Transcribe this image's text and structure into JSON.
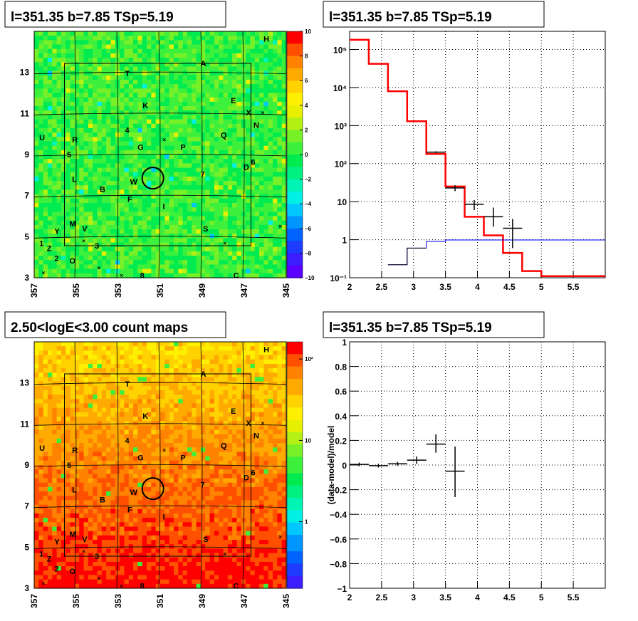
{
  "chart_data": [
    {
      "type": "heatmap",
      "title": "l=351.35 b=7.85 TSp=5.19",
      "x_ticks": [
        "357",
        "355",
        "353",
        "351",
        "349",
        "347",
        "345"
      ],
      "y_ticks": [
        "3",
        "5",
        "7",
        "9",
        "11",
        "13"
      ],
      "xlim": [
        357,
        345
      ],
      "ylim": [
        3,
        15
      ],
      "colorbar": {
        "scale": "linear",
        "range": [
          -10,
          10
        ],
        "ticks": [
          "10",
          "8",
          "6",
          "4",
          "2",
          "0",
          "−2",
          "−4",
          "−6",
          "−8",
          "−10"
        ]
      },
      "source_circle": {
        "l": 351.35,
        "b": 7.85
      }
    },
    {
      "type": "line",
      "title": "l=351.35 b=7.85 TSp=5.19",
      "xlim": [
        2,
        6
      ],
      "ylim": [
        0.1,
        300000
      ],
      "yscale": "log",
      "x_ticks": [
        "2",
        "2.5",
        "3",
        "3.5",
        "4",
        "4.5",
        "5",
        "5.5"
      ],
      "y_ticks": [
        "10⁻¹",
        "1",
        "10",
        "10²",
        "10³",
        "10⁴",
        "10⁵"
      ],
      "grid": true,
      "series": [
        {
          "color": "#ff0000",
          "edges": [
            2,
            2.3,
            2.6,
            2.9,
            3.2,
            3.5,
            3.8,
            4.1,
            4.4,
            4.7,
            5.0,
            6.0
          ],
          "values": [
            180000,
            42000,
            8000,
            1300,
            180,
            25,
            4,
            1.3,
            0.45,
            0.15,
            0.11
          ]
        },
        {
          "color": "#0000ff",
          "edges": [
            2.6,
            2.9,
            3.2,
            3.5,
            3.8,
            4.1,
            4.4,
            4.7,
            5.0,
            6.0
          ],
          "values": [
            0.22,
            0.6,
            0.9,
            0.98,
            0.98,
            0.98,
            0.98,
            0.98,
            0.98
          ]
        },
        {
          "color": "#000000",
          "edges": [
            2.6,
            2.9,
            3.2
          ],
          "values": [
            0.22,
            0.6
          ]
        }
      ],
      "points": [
        {
          "x": 3.35,
          "y": 200,
          "xerr": 0.15,
          "ylo": 190,
          "yhi": 210
        },
        {
          "x": 3.65,
          "y": 23,
          "xerr": 0.15,
          "ylo": 19,
          "yhi": 27
        },
        {
          "x": 3.95,
          "y": 8.5,
          "xerr": 0.15,
          "ylo": 6,
          "yhi": 11
        },
        {
          "x": 4.25,
          "y": 4,
          "xerr": 0.15,
          "ylo": 2.2,
          "yhi": 7
        },
        {
          "x": 4.55,
          "y": 2,
          "xerr": 0.15,
          "ylo": 0.6,
          "yhi": 3.5
        }
      ]
    },
    {
      "type": "heatmap",
      "title": "2.50<logE<3.00 count maps",
      "x_ticks": [
        "357",
        "355",
        "353",
        "351",
        "349",
        "347",
        "345"
      ],
      "y_ticks": [
        "3",
        "5",
        "7",
        "9",
        "11",
        "13"
      ],
      "xlim": [
        357,
        345
      ],
      "ylim": [
        3,
        15
      ],
      "colorbar": {
        "scale": "log",
        "ticks": [
          "10²",
          "10",
          "1"
        ]
      },
      "source_circle": {
        "l": 351.35,
        "b": 7.85
      }
    },
    {
      "type": "scatter",
      "title": "l=351.35 b=7.85 TSp=5.19",
      "ylabel": "(data-model)/model",
      "xlim": [
        2,
        6
      ],
      "ylim": [
        -1,
        1
      ],
      "x_ticks": [
        "2",
        "2.5",
        "3",
        "3.5",
        "4",
        "4.5",
        "5",
        "5.5"
      ],
      "y_ticks": [
        "1",
        "0.8",
        "0.6",
        "0.4",
        "0.2",
        "0",
        "−0.2",
        "−0.4",
        "−0.6",
        "−0.8",
        "−1"
      ],
      "grid": true,
      "points": [
        {
          "x": 2.15,
          "y": 0.005,
          "xerr": 0.15,
          "ylo": -0.01,
          "yhi": 0.02
        },
        {
          "x": 2.45,
          "y": -0.005,
          "xerr": 0.15,
          "ylo": -0.02,
          "yhi": 0.01
        },
        {
          "x": 2.75,
          "y": 0.01,
          "xerr": 0.15,
          "ylo": -0.005,
          "yhi": 0.025
        },
        {
          "x": 3.05,
          "y": 0.04,
          "xerr": 0.15,
          "ylo": 0.01,
          "yhi": 0.07
        },
        {
          "x": 3.35,
          "y": 0.17,
          "xerr": 0.15,
          "ylo": 0.1,
          "yhi": 0.25
        },
        {
          "x": 3.65,
          "y": -0.05,
          "xerr": 0.15,
          "ylo": -0.26,
          "yhi": 0.15
        }
      ]
    }
  ],
  "map_labels": [
    "H",
    "A",
    "T",
    "K",
    "E",
    "X",
    "N",
    "4",
    "Q",
    "U",
    "R",
    "5",
    "G",
    "P",
    "6",
    "D",
    "L",
    "W",
    "7",
    "B",
    "F",
    "I",
    "Y",
    "M",
    "V",
    "S",
    "1",
    "Z",
    "3",
    "2",
    "O",
    "C",
    "8"
  ]
}
